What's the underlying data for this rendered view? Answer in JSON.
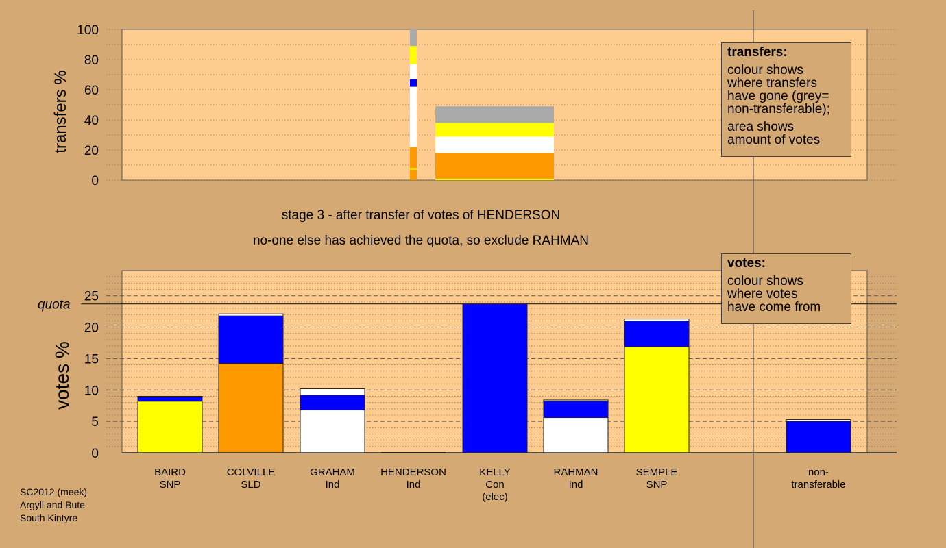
{
  "chart_data": [
    {
      "type": "bar",
      "ylabel": "transfers %",
      "ylim": [
        0,
        100
      ],
      "yticks": [
        0,
        20,
        40,
        60,
        80,
        100
      ],
      "grid": true,
      "colors": {
        "SNP": "#ffff00",
        "SLD": "#ff9900",
        "Ind": "#ffffff",
        "Con": "#0000ff",
        "nontransferable": "#aaaaaa"
      },
      "source_column": {
        "candidate": "HENDERSON",
        "segments": [
          {
            "party": "SLD",
            "from": 0,
            "to": 7
          },
          {
            "party": "SNP",
            "from": 7,
            "to": 8
          },
          {
            "party": "SLD",
            "from": 8,
            "to": 22
          },
          {
            "party": "Ind",
            "from": 22,
            "to": 62
          },
          {
            "party": "Con",
            "from": 62,
            "to": 67
          },
          {
            "party": "Ind",
            "from": 67,
            "to": 77
          },
          {
            "party": "SNP",
            "from": 77,
            "to": 89
          },
          {
            "party": "nontransferable",
            "from": 89,
            "to": 100
          }
        ]
      },
      "transfer_block": {
        "segments": [
          {
            "party": "SNP",
            "from": 0,
            "to": 1
          },
          {
            "party": "SLD",
            "from": 1,
            "to": 18
          },
          {
            "party": "Ind",
            "from": 18,
            "to": 29
          },
          {
            "party": "SNP",
            "from": 29,
            "to": 38
          },
          {
            "party": "nontransferable",
            "from": 38,
            "to": 49
          }
        ]
      }
    },
    {
      "type": "bar",
      "ylabel": "votes %",
      "ylim": [
        0,
        29
      ],
      "yticks": [
        0,
        5,
        10,
        15,
        20,
        25
      ],
      "quota": 23.7,
      "quota_label": "quota",
      "grid": true,
      "categories": [
        "BAIRD\nSNP",
        "COLVILLE\nSLD",
        "GRAHAM\nInd",
        "HENDERSON\nInd",
        "KELLY\nCon\n(elec)",
        "RAHMAN\nInd",
        "SEMPLE\nSNP",
        "",
        "non-\ntransferable"
      ],
      "bars": [
        {
          "name": "BAIRD",
          "party": "SNP",
          "label_lines": [
            "BAIRD",
            "SNP"
          ],
          "segments": [
            {
              "color": "#ffff00",
              "value": 8.2
            },
            {
              "color": "#0000ff",
              "value": 0.7
            },
            {
              "color": "#ffffff",
              "value": 0.1
            }
          ]
        },
        {
          "name": "COLVILLE",
          "party": "SLD",
          "label_lines": [
            "COLVILLE",
            "SLD"
          ],
          "segments": [
            {
              "color": "#ff9900",
              "value": 14.2
            },
            {
              "color": "#0000ff",
              "value": 7.6
            },
            {
              "color": "#ffffff",
              "value": 0.3
            }
          ]
        },
        {
          "name": "GRAHAM",
          "party": "Ind",
          "label_lines": [
            "GRAHAM",
            "Ind"
          ],
          "segments": [
            {
              "color": "#ffffff",
              "value": 6.8
            },
            {
              "color": "#0000ff",
              "value": 2.4
            },
            {
              "color": "#ffffff",
              "value": 1.0
            }
          ]
        },
        {
          "name": "HENDERSON",
          "party": "Ind",
          "label_lines": [
            "HENDERSON",
            "Ind"
          ],
          "segments": []
        },
        {
          "name": "KELLY",
          "party": "Con",
          "label_lines": [
            "KELLY",
            "Con",
            "(elec)"
          ],
          "segments": [
            {
              "color": "#0000ff",
              "value": 23.7
            }
          ]
        },
        {
          "name": "RAHMAN",
          "party": "Ind",
          "label_lines": [
            "RAHMAN",
            "Ind"
          ],
          "segments": [
            {
              "color": "#ffffff",
              "value": 5.6
            },
            {
              "color": "#0000ff",
              "value": 2.6
            },
            {
              "color": "#ffffff",
              "value": 0.2
            }
          ]
        },
        {
          "name": "SEMPLE",
          "party": "SNP",
          "label_lines": [
            "SEMPLE",
            "SNP"
          ],
          "segments": [
            {
              "color": "#ffff00",
              "value": 16.9
            },
            {
              "color": "#0000ff",
              "value": 4.1
            },
            {
              "color": "#ffffff",
              "value": 0.3
            }
          ]
        },
        {
          "name": "non-transferable",
          "party": "",
          "label_lines": [
            "non-",
            "transferable"
          ],
          "segments": [
            {
              "color": "#0000ff",
              "value": 5.0
            },
            {
              "color": "#ffffff",
              "value": 0.3
            }
          ]
        }
      ]
    }
  ],
  "captions": {
    "line1": "stage 3 - after transfer of votes of HENDERSON",
    "line2": "no-one else has achieved the quota, so exclude RAHMAN"
  },
  "legend_transfers": {
    "title": "transfers:",
    "lines1": [
      "colour shows",
      "where transfers",
      "have gone (grey=",
      "non-transferable);"
    ],
    "lines2": [
      "area shows",
      "amount of votes"
    ]
  },
  "legend_votes": {
    "title": "votes:",
    "lines": [
      "colour shows",
      "where votes",
      "have come from"
    ]
  },
  "footer": {
    "line1": "SC2012 (meek)",
    "line2": "Argyll and Bute",
    "line3": "South Kintyre"
  }
}
